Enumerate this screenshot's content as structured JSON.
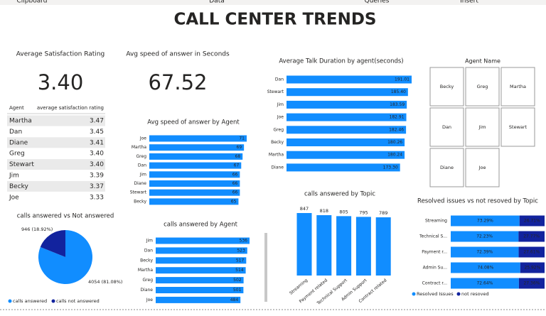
{
  "ribbon": [
    "Clipboard",
    "Data",
    "Queries",
    "Insert"
  ],
  "title": "CALL CENTER TRENDS",
  "cards": [
    {
      "label": "Average Satisfaction Rating",
      "value": "3.40"
    },
    {
      "label": "Avg speed of answer in Seconds",
      "value": "67.52"
    }
  ],
  "table": {
    "header": [
      "Agent",
      "average satisfaction rating"
    ],
    "rows": [
      [
        "Martha",
        "3.47"
      ],
      [
        "Dan",
        "3.45"
      ],
      [
        "Diane",
        "3.41"
      ],
      [
        "Greg",
        "3.40"
      ],
      [
        "Stewart",
        "3.40"
      ],
      [
        "Jim",
        "3.39"
      ],
      [
        "Becky",
        "3.37"
      ],
      [
        "Joe",
        "3.33"
      ]
    ]
  },
  "slicer": {
    "title": "Agent Name",
    "items": [
      "Becky",
      "Greg",
      "Martha",
      "Dan",
      "Jim",
      "Stewart",
      "Diane",
      "Joe"
    ]
  },
  "chart_data": [
    {
      "type": "hbar",
      "title": "Avg speed of answer by Agent",
      "color": "#118dff",
      "categories": [
        "Joe",
        "Martha",
        "Greg",
        "Dan",
        "Jim",
        "Diane",
        "Stewart",
        "Becky"
      ],
      "values": [
        71,
        69,
        68,
        67,
        66,
        66,
        66,
        65
      ]
    },
    {
      "type": "hbar",
      "title": "Average Talk Duration by agent(seconds)",
      "color": "#118dff",
      "categories": [
        "Dan",
        "Stewart",
        "Jim",
        "Joe",
        "Greg",
        "Becky",
        "Martha",
        "Diane"
      ],
      "values": [
        191.01,
        185.4,
        183.59,
        182.91,
        182.46,
        180.26,
        180.24,
        173.3
      ],
      "value_labels": [
        "191.01",
        "185.40",
        "183.59",
        "182.91",
        "182.46",
        "180.26",
        "180.24",
        "173.30"
      ]
    },
    {
      "type": "hbar",
      "title": "calls answered by Agent",
      "color": "#118dff",
      "categories": [
        "Jim",
        "Dan",
        "Becky",
        "Martha",
        "Greg",
        "Diane",
        "Joe"
      ],
      "values": [
        536,
        523,
        517,
        514,
        502,
        501,
        484
      ]
    },
    {
      "type": "column",
      "title": "calls answered by Topic",
      "color": "#118dff",
      "categories": [
        "Streaming",
        "Payment related",
        "Technical Support",
        "Admin Support",
        "Contract related"
      ],
      "values": [
        847,
        818,
        805,
        795,
        789
      ]
    },
    {
      "type": "pie",
      "title": "calls answered vs Not answered",
      "categories": [
        "calls answered",
        "calls not answered"
      ],
      "values": [
        4054,
        946
      ],
      "colors": [
        "#118dff",
        "#12239e"
      ],
      "value_labels": [
        "4054 (81.08%)",
        "946 (18.92%)"
      ]
    },
    {
      "type": "stacked_hbar",
      "title": "Resolved issues vs not resoved by Topic",
      "categories": [
        "Streaming",
        "Technical S...",
        "Payment r...",
        "Admin Su...",
        "Contract r..."
      ],
      "series": [
        {
          "name": "Resolved Issues",
          "color": "#118dff",
          "values": [
            73.29,
            72.23,
            72.39,
            74.08,
            72.64
          ],
          "value_labels": [
            "73.29%",
            "72.23%",
            "72.39%",
            "74.08%",
            "72.64%"
          ]
        },
        {
          "name": "not resoved",
          "color": "#12239e",
          "values": [
            26.71,
            27.77,
            27.61,
            25.92,
            27.36
          ],
          "value_labels": [
            "26.71%",
            "27.77%",
            "27.61%",
            "25.92%",
            "27.36%"
          ]
        }
      ]
    }
  ]
}
